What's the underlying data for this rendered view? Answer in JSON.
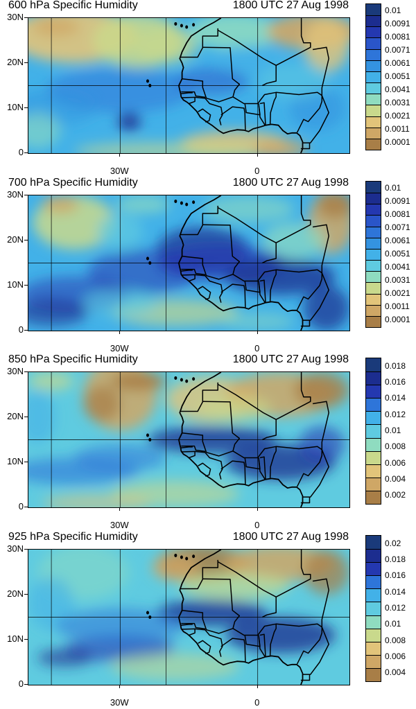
{
  "panels": [
    {
      "title": "600 hPa Specific Humidity",
      "time": "1800 UTC 27 Aug 1998",
      "theme": "mid",
      "colorbar_labels": [
        "0.01",
        "0.0091",
        "0.0081",
        "0.0071",
        "0.0061",
        "0.0051",
        "0.0041",
        "0.0031",
        "0.0021",
        "0.0011",
        "0.0001"
      ],
      "colorbar_colors": [
        "#1a3a7a",
        "#1c2d8f",
        "#2438b0",
        "#2a55c9",
        "#2e75d9",
        "#3493e0",
        "#42b1e8",
        "#5fcbe0",
        "#8fdcc0",
        "#c9d98c",
        "#e2c47a",
        "#cfa766",
        "#a87e47"
      ]
    },
    {
      "title": "700 hPa Specific Humidity",
      "time": "1800 UTC 27 Aug 1998",
      "theme": "moist",
      "colorbar_labels": [
        "0.01",
        "0.0091",
        "0.0081",
        "0.0071",
        "0.0061",
        "0.0051",
        "0.0041",
        "0.0031",
        "0.0021",
        "0.0011",
        "0.0001"
      ],
      "colorbar_colors": [
        "#1a3a7a",
        "#1c2d8f",
        "#2438b0",
        "#2a55c9",
        "#2e75d9",
        "#3493e0",
        "#42b1e8",
        "#5fcbe0",
        "#8fdcc0",
        "#c9d98c",
        "#e2c47a",
        "#cfa766",
        "#a87e47"
      ]
    },
    {
      "title": "850 hPa Specific Humidity",
      "time": "1800 UTC 27 Aug 1998",
      "theme": "low",
      "colorbar_labels": [
        "0.018",
        "0.016",
        "0.014",
        "0.012",
        "0.01",
        "0.008",
        "0.006",
        "0.004",
        "0.002"
      ],
      "colorbar_colors": [
        "#1a3a7a",
        "#1c2d8f",
        "#2438b0",
        "#2e75d9",
        "#42b1e8",
        "#5fcbe0",
        "#8fdcc0",
        "#c9d98c",
        "#e2c47a",
        "#cfa766",
        "#a87e47"
      ]
    },
    {
      "title": "925 hPa Specific Humidity",
      "time": "1800 UTC 27 Aug 1998",
      "theme": "surface",
      "colorbar_labels": [
        "0.02",
        "0.018",
        "0.016",
        "0.014",
        "0.012",
        "0.01",
        "0.008",
        "0.006",
        "0.004"
      ],
      "colorbar_colors": [
        "#1a3a7a",
        "#1c2d8f",
        "#2438b0",
        "#2e75d9",
        "#42b1e8",
        "#5fcbe0",
        "#8fdcc0",
        "#c9d98c",
        "#e2c47a",
        "#cfa766",
        "#a87e47"
      ]
    }
  ],
  "axes": {
    "y_ticks": [
      "30N",
      "20N",
      "10N",
      "0"
    ],
    "x_ticks": [
      "30W",
      "0"
    ]
  },
  "chart_data": [
    {
      "type": "heatmap",
      "title": "600 hPa Specific Humidity",
      "subtitle": "1800 UTC 27 Aug 1998",
      "xlabel": "",
      "ylabel": "",
      "xlim": [
        -50,
        20
      ],
      "ylim": [
        0,
        30
      ],
      "x_tick_labels": [
        "30W",
        "0"
      ],
      "y_tick_labels": [
        "0",
        "10N",
        "20N",
        "30N"
      ],
      "levels": [
        0.0001,
        0.0011,
        0.0021,
        0.0031,
        0.0041,
        0.0051,
        0.0061,
        0.0071,
        0.0081,
        0.0091,
        0.01
      ],
      "grid": true,
      "legend": "right colorbar"
    },
    {
      "type": "heatmap",
      "title": "700 hPa Specific Humidity",
      "subtitle": "1800 UTC 27 Aug 1998",
      "xlabel": "",
      "ylabel": "",
      "xlim": [
        -50,
        20
      ],
      "ylim": [
        0,
        30
      ],
      "x_tick_labels": [
        "30W",
        "0"
      ],
      "y_tick_labels": [
        "0",
        "10N",
        "20N",
        "30N"
      ],
      "levels": [
        0.0001,
        0.0011,
        0.0021,
        0.0031,
        0.0041,
        0.0051,
        0.0061,
        0.0071,
        0.0081,
        0.0091,
        0.01
      ],
      "grid": true,
      "legend": "right colorbar"
    },
    {
      "type": "heatmap",
      "title": "850 hPa Specific Humidity",
      "subtitle": "1800 UTC 27 Aug 1998",
      "xlabel": "",
      "ylabel": "",
      "xlim": [
        -50,
        20
      ],
      "ylim": [
        0,
        30
      ],
      "x_tick_labels": [
        "30W",
        "0"
      ],
      "y_tick_labels": [
        "0",
        "10N",
        "20N",
        "30N"
      ],
      "levels": [
        0.002,
        0.004,
        0.006,
        0.008,
        0.01,
        0.012,
        0.014,
        0.016,
        0.018
      ],
      "grid": true,
      "legend": "right colorbar"
    },
    {
      "type": "heatmap",
      "title": "925 hPa Specific Humidity",
      "subtitle": "1800 UTC 27 Aug 1998",
      "xlabel": "",
      "ylabel": "",
      "xlim": [
        -50,
        20
      ],
      "ylim": [
        0,
        30
      ],
      "x_tick_labels": [
        "30W",
        "0"
      ],
      "y_tick_labels": [
        "0",
        "10N",
        "20N",
        "30N"
      ],
      "levels": [
        0.004,
        0.006,
        0.008,
        0.01,
        0.012,
        0.014,
        0.016,
        0.018,
        0.02
      ],
      "grid": true,
      "legend": "right colorbar"
    }
  ]
}
